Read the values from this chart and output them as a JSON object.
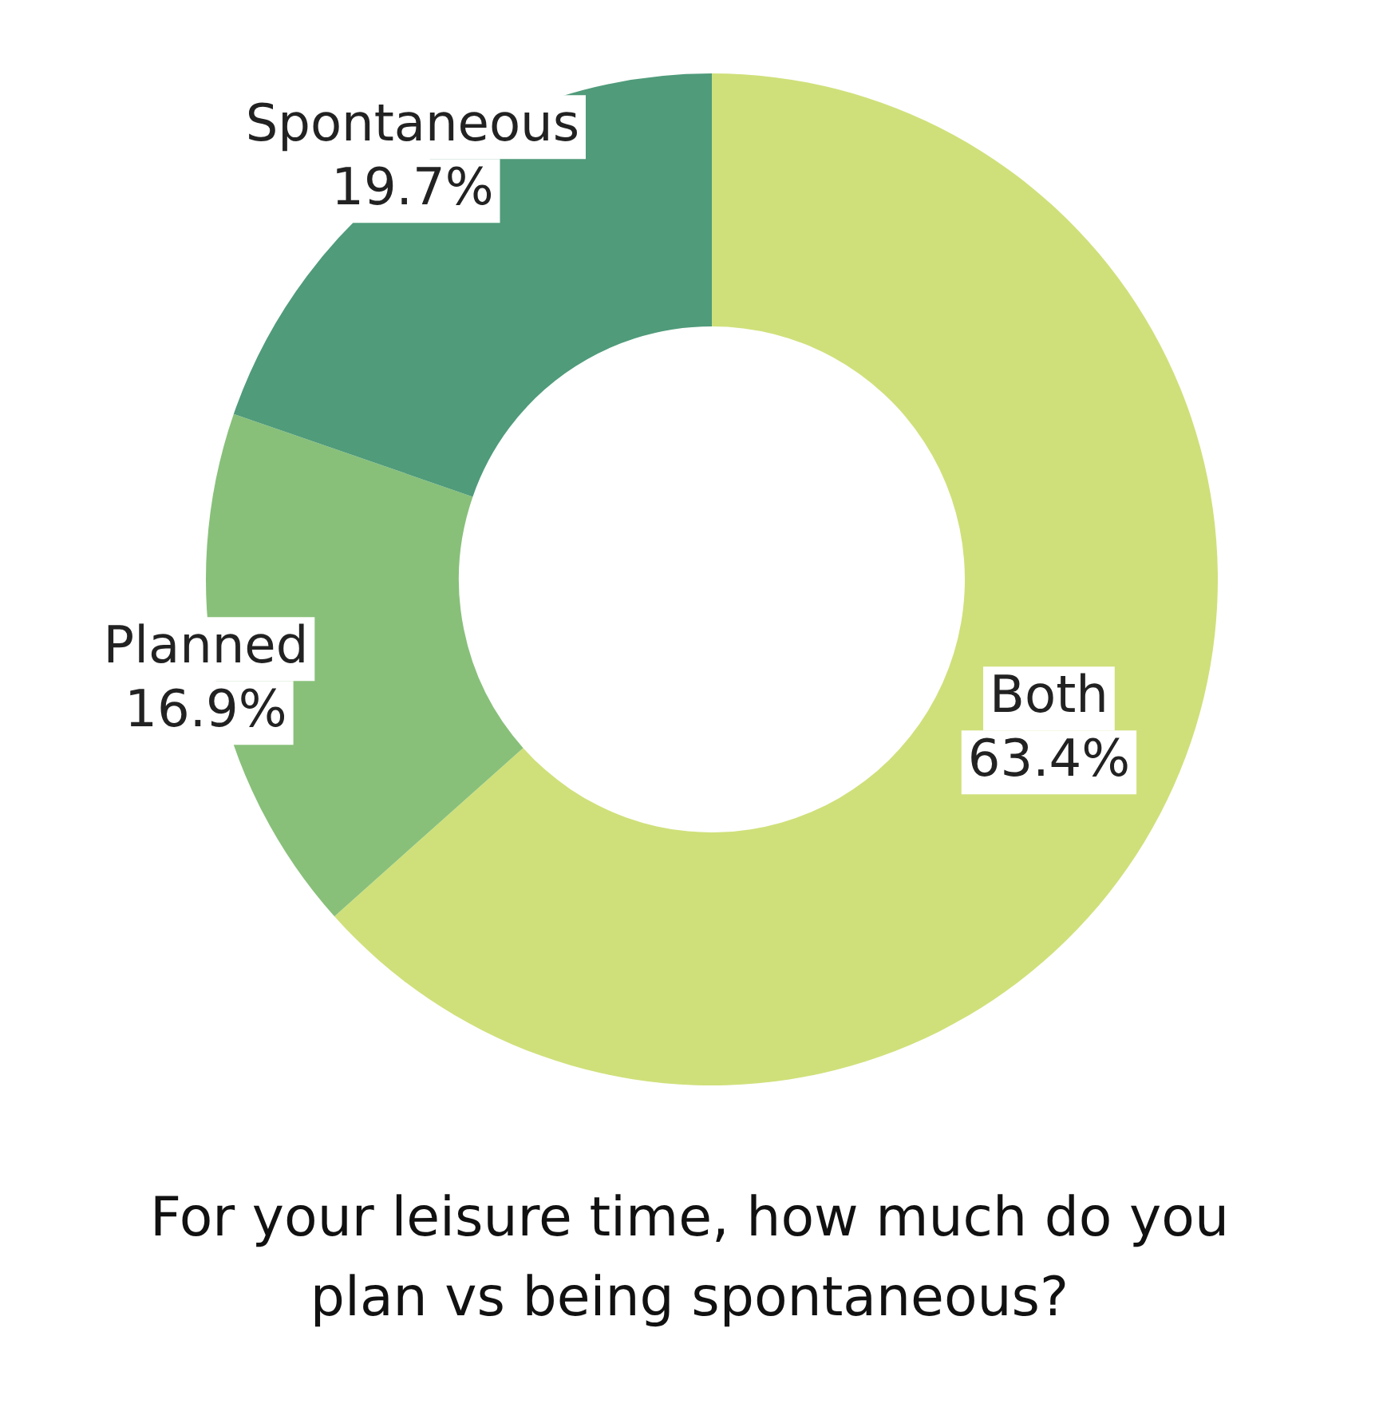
{
  "chart_data": {
    "type": "donut",
    "title": "For your leisure time, how much do you plan vs being spontaneous?",
    "categories": [
      "Both",
      "Planned",
      "Spontaneous"
    ],
    "values": [
      63.4,
      16.9,
      19.7
    ],
    "value_labels": [
      "63.4%",
      "16.9%",
      "19.7%"
    ],
    "colors": [
      "#cfe07a",
      "#88c07a",
      "#4f9b7a"
    ],
    "legend": false
  }
}
